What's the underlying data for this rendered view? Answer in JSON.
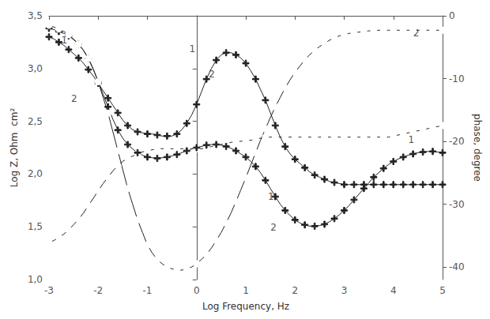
{
  "chart_data": {
    "type": "line",
    "xlabel": "Log Frequency, Hz",
    "ylabel": "Log Z, Ohm  cm²",
    "y2label": "phase, degree",
    "xlim": [
      -3,
      5
    ],
    "xticks": [
      -3,
      -2,
      -1,
      0,
      1,
      2,
      3,
      4,
      5
    ],
    "ylim": [
      1.0,
      3.5
    ],
    "yticks": [
      {
        "value": 1.0,
        "label": "1,0"
      },
      {
        "value": 1.5,
        "label": "1,5"
      },
      {
        "value": 2.0,
        "label": "2,0"
      },
      {
        "value": 2.5,
        "label": "2,5"
      },
      {
        "value": 3.0,
        "label": "3,0"
      },
      {
        "value": 3.5,
        "label": "3,5"
      }
    ],
    "y2lim": [
      -42,
      0
    ],
    "y2ticks": [
      0,
      -10,
      -20,
      -30,
      -40
    ],
    "grid": false,
    "x": [
      -3.0,
      -2.9,
      -2.8,
      -2.7,
      -2.6,
      -2.5,
      -2.4,
      -2.3,
      -2.2,
      -2.1,
      -2.0,
      -1.9,
      -1.8,
      -1.7,
      -1.6,
      -1.5,
      -1.4,
      -1.3,
      -1.2,
      -1.1,
      -1.0,
      -0.9,
      -0.8,
      -0.7,
      -0.6,
      -0.5,
      -0.4,
      -0.3,
      -0.2,
      -0.1,
      0.0,
      0.1,
      0.2,
      0.3,
      0.4,
      0.5,
      0.6,
      0.7,
      0.8,
      0.9,
      1.0,
      1.1,
      1.2,
      1.3,
      1.4,
      1.5,
      1.6,
      1.7,
      1.8,
      1.9,
      2.0,
      2.1,
      2.2,
      2.3,
      2.4,
      2.5,
      2.6,
      2.7,
      2.8,
      2.9,
      3.0,
      3.1,
      3.2,
      3.3,
      3.4,
      3.5,
      3.6,
      3.7,
      3.8,
      3.9,
      4.0,
      4.1,
      4.2,
      4.3,
      4.4,
      4.5,
      4.6,
      4.7,
      4.8,
      4.9,
      5.0
    ],
    "series": [
      {
        "color": "#222222",
        "marker": "plus",
        "axis": "y",
        "values": [
          3.3,
          3.28,
          3.25,
          3.22,
          3.18,
          3.14,
          3.1,
          3.05,
          2.99,
          2.93,
          2.86,
          2.79,
          2.72,
          2.65,
          2.58,
          2.51,
          2.46,
          2.42,
          2.4,
          2.39,
          2.38,
          2.38,
          2.37,
          2.36,
          2.36,
          2.36,
          2.38,
          2.42,
          2.48,
          2.56,
          2.66,
          2.78,
          2.9,
          3.0,
          3.08,
          3.13,
          3.15,
          3.15,
          3.13,
          3.1,
          3.05,
          2.98,
          2.9,
          2.8,
          2.7,
          2.58,
          2.46,
          2.35,
          2.26,
          2.19,
          2.14,
          2.1,
          2.06,
          2.02,
          1.99,
          1.97,
          1.95,
          1.93,
          1.92,
          1.91,
          1.9,
          1.9,
          1.9,
          1.9,
          1.9,
          1.9,
          1.9,
          1.9,
          1.9,
          1.9,
          1.9,
          1.9,
          1.9,
          1.9,
          1.9,
          1.9,
          1.9,
          1.9,
          1.9,
          1.9,
          1.9
        ]
      },
      {
        "color": "#222222",
        "marker": "circle",
        "axis": "y",
        "values": [
          1.35,
          1.37,
          1.4,
          1.43,
          1.47,
          1.52,
          1.57,
          1.63,
          1.7,
          1.77,
          1.84,
          1.91,
          1.97,
          2.03,
          2.08,
          2.12,
          2.15,
          2.17,
          2.19,
          2.21,
          2.22,
          2.23,
          2.24,
          2.24,
          2.24,
          2.24,
          2.24,
          2.24,
          2.24,
          2.24,
          2.24,
          2.24,
          2.25,
          2.26,
          2.27,
          2.28,
          2.29,
          2.3,
          2.31,
          2.31,
          2.32,
          2.32,
          2.33,
          2.34,
          2.35,
          2.35,
          2.35,
          2.35,
          2.35,
          2.35,
          2.35,
          2.35,
          2.35,
          2.35,
          2.35,
          2.35,
          2.35,
          2.35,
          2.35,
          2.35,
          2.35,
          2.35,
          2.35,
          2.35,
          2.35,
          2.35,
          2.35,
          2.35,
          2.35,
          2.35,
          2.36,
          2.37,
          2.38,
          2.39,
          2.4,
          2.41,
          2.42,
          2.43,
          2.44,
          2.45,
          2.46
        ]
      },
      {
        "color": "#222222",
        "marker": "plus",
        "axis": "y2",
        "values": [
          -2.0,
          -2.2,
          -2.5,
          -2.8,
          -3.2,
          -3.8,
          -4.5,
          -5.5,
          -6.8,
          -8.5,
          -10.5,
          -12.5,
          -14.5,
          -16.5,
          -18.2,
          -19.5,
          -20.5,
          -21.2,
          -21.8,
          -22.2,
          -22.5,
          -22.6,
          -22.7,
          -22.6,
          -22.5,
          -22.3,
          -22.1,
          -21.8,
          -21.5,
          -21.2,
          -21.0,
          -20.8,
          -20.6,
          -20.5,
          -20.5,
          -20.6,
          -20.8,
          -21.1,
          -21.5,
          -22.0,
          -22.5,
          -23.2,
          -24.0,
          -25.0,
          -26.2,
          -27.5,
          -28.8,
          -30.0,
          -31.0,
          -31.8,
          -32.5,
          -33.0,
          -33.3,
          -33.5,
          -33.5,
          -33.4,
          -33.2,
          -32.8,
          -32.3,
          -31.7,
          -31.0,
          -30.2,
          -29.3,
          -28.4,
          -27.5,
          -26.6,
          -25.7,
          -25.0,
          -24.3,
          -23.7,
          -23.2,
          -22.8,
          -22.5,
          -22.2,
          -22.0,
          -21.8,
          -21.7,
          -21.6,
          -21.6,
          -21.7,
          -21.8
        ]
      },
      {
        "color": "#222222",
        "marker": "circle",
        "axis": "y2",
        "values": [
          -1.5,
          -1.8,
          -2.1,
          -2.5,
          -3.0,
          -3.7,
          -4.5,
          -5.5,
          -6.8,
          -8.5,
          -10.5,
          -13.0,
          -15.5,
          -18.5,
          -21.5,
          -24.5,
          -27.5,
          -30.0,
          -32.5,
          -34.5,
          -36.5,
          -37.8,
          -38.8,
          -39.5,
          -40.0,
          -40.3,
          -40.5,
          -40.5,
          -40.3,
          -40.0,
          -39.5,
          -38.8,
          -38.0,
          -37.0,
          -35.8,
          -34.5,
          -33.0,
          -31.4,
          -29.6,
          -27.7,
          -25.8,
          -23.8,
          -21.8,
          -19.8,
          -18.0,
          -16.2,
          -14.5,
          -13.0,
          -11.5,
          -10.2,
          -9.0,
          -8.0,
          -7.0,
          -6.2,
          -5.5,
          -4.9,
          -4.4,
          -3.9,
          -3.5,
          -3.2,
          -3.0,
          -2.8,
          -2.7,
          -2.6,
          -2.5,
          -2.4,
          -2.4,
          -2.3,
          -2.3,
          -2.3,
          -2.3,
          -2.3,
          -2.3,
          -2.3,
          -2.3,
          -2.3,
          -2.3,
          -2.3,
          -2.3,
          -2.3,
          -2.3
        ]
      }
    ],
    "annotations": [
      {
        "text": "1",
        "x": -2.75,
        "y": 3.22,
        "axis": "y"
      },
      {
        "text": "2",
        "x": -2.55,
        "y": 2.67,
        "axis": "y"
      },
      {
        "text": "1",
        "x": -0.15,
        "y": 3.14,
        "axis": "y"
      },
      {
        "text": "2",
        "x": 0.25,
        "y": 2.9,
        "axis": "y"
      },
      {
        "text": "1",
        "x": 4.3,
        "y": -20.5,
        "axis": "y2"
      },
      {
        "text": "2",
        "x": 4.4,
        "y": -3.5,
        "axis": "y2"
      },
      {
        "text": "2",
        "x": 1.5,
        "y": -34.5,
        "axis": "y2"
      },
      {
        "text": "1",
        "x": 1.45,
        "y": -29.5,
        "axis": "y2"
      }
    ]
  }
}
